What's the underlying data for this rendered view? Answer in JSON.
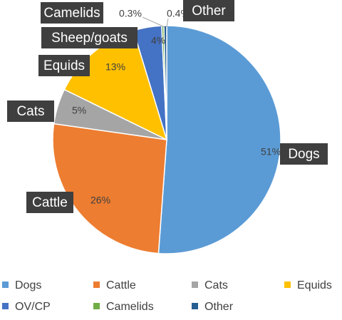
{
  "chart_data": {
    "type": "pie",
    "slices": [
      {
        "category": "Dogs",
        "value": 51,
        "pct_label": "51%",
        "callout": "Dogs",
        "legend": "Dogs",
        "color": "#5b9bd5"
      },
      {
        "category": "Cattle",
        "value": 26,
        "pct_label": "26%",
        "callout": "Cattle",
        "legend": "Cattle",
        "color": "#ed7d31"
      },
      {
        "category": "Cats",
        "value": 5,
        "pct_label": "5%",
        "callout": "Cats",
        "legend": "Cats",
        "color": "#a5a5a5"
      },
      {
        "category": "Equids",
        "value": 13,
        "pct_label": "13%",
        "callout": "Equids",
        "legend": "Equids",
        "color": "#ffc000"
      },
      {
        "category": "OV/CP",
        "value": 4,
        "pct_label": "4%",
        "callout": "Sheep/goats",
        "legend": "OV/CP",
        "color": "#4472c4"
      },
      {
        "category": "Camelids",
        "value": 0.3,
        "pct_label": "0.3%",
        "callout": "Camelids",
        "legend": "Camelids",
        "color": "#70ad47"
      },
      {
        "category": "Other",
        "value": 0.4,
        "pct_label": "0.4%",
        "callout": "Other",
        "legend": "Other",
        "color": "#255e91"
      }
    ],
    "legend_position": "bottom"
  }
}
